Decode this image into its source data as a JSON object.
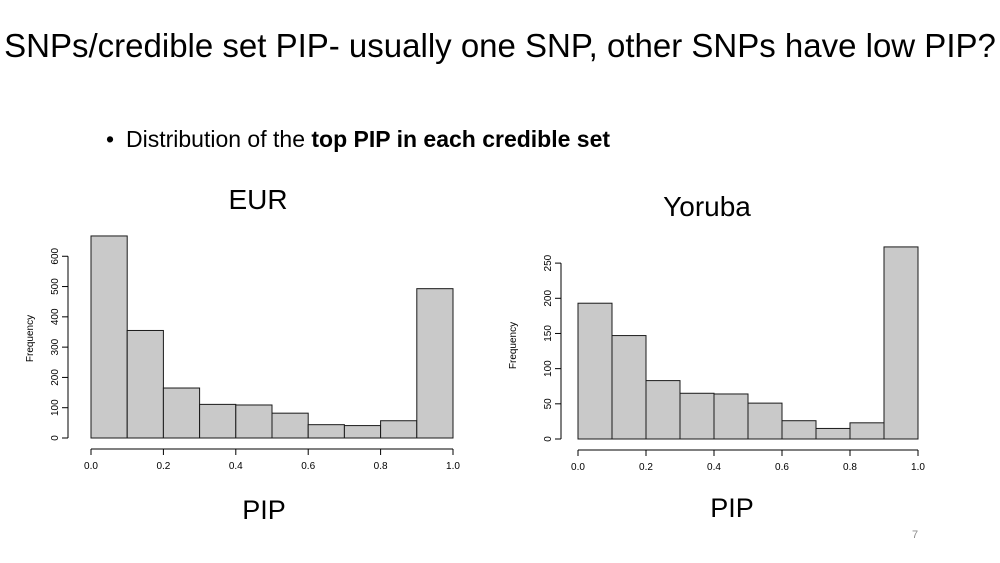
{
  "slide": {
    "title": "SNPs/credible set PIP- usually one SNP, other SNPs have low PIP?",
    "bullet_prefix": "Distribution of the ",
    "bullet_bold": "top PIP in each credible set",
    "page_number": "7"
  },
  "colors": {
    "bar_fill": "#c9c9c9",
    "bar_stroke": "#1a1a1a",
    "axis": "#000000"
  },
  "chart_data": [
    {
      "type": "bar",
      "title": "EUR",
      "xlabel": "PIP",
      "ylabel": "Frequency",
      "bin_edges": [
        0.0,
        0.1,
        0.2,
        0.3,
        0.4,
        0.5,
        0.6,
        0.7,
        0.8,
        0.9,
        1.0
      ],
      "values": [
        667,
        355,
        165,
        111,
        109,
        82,
        44,
        41,
        57,
        493
      ],
      "xlim": [
        0.0,
        1.0
      ],
      "ylim": [
        0,
        690
      ],
      "x_ticks": [
        "0.0",
        "0.2",
        "0.4",
        "0.6",
        "0.8",
        "1.0"
      ],
      "y_ticks": [
        "0",
        "100",
        "200",
        "300",
        "400",
        "500",
        "600"
      ]
    },
    {
      "type": "bar",
      "title": "Yoruba",
      "xlabel": "PIP",
      "ylabel": "Frequency",
      "bin_edges": [
        0.0,
        0.1,
        0.2,
        0.3,
        0.4,
        0.5,
        0.6,
        0.7,
        0.8,
        0.9,
        1.0
      ],
      "values": [
        193,
        147,
        83,
        65,
        64,
        51,
        26,
        15,
        23,
        273
      ],
      "xlim": [
        0.0,
        1.0
      ],
      "ylim": [
        0,
        280
      ],
      "x_ticks": [
        "0.0",
        "0.2",
        "0.4",
        "0.6",
        "0.8",
        "1.0"
      ],
      "y_ticks": [
        "0",
        "50",
        "100",
        "150",
        "200",
        "250"
      ]
    }
  ]
}
